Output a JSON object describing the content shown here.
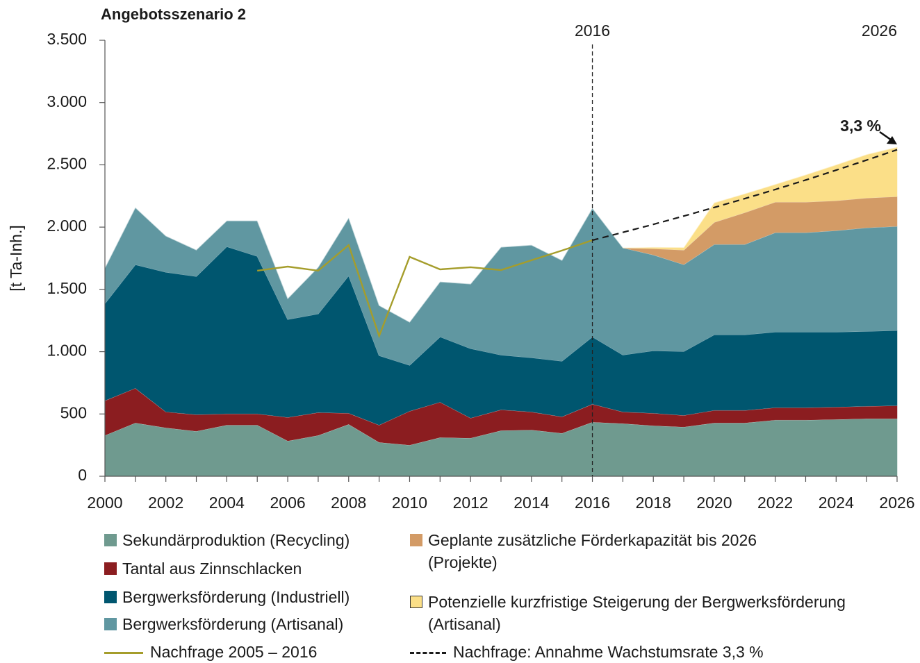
{
  "chart_data": {
    "type": "stacked-area",
    "title": "Angebotsszenario 2",
    "y_label": "[t Ta-Inh.]",
    "x": [
      2000,
      2001,
      2002,
      2003,
      2004,
      2005,
      2006,
      2007,
      2008,
      2009,
      2010,
      2011,
      2012,
      2013,
      2014,
      2015,
      2016,
      2017,
      2018,
      2019,
      2020,
      2021,
      2022,
      2023,
      2024,
      2025,
      2026
    ],
    "xlim": [
      2000,
      2026
    ],
    "xticks": [
      2000,
      2002,
      2004,
      2006,
      2008,
      2010,
      2012,
      2014,
      2016,
      2018,
      2020,
      2022,
      2024,
      2026
    ],
    "ylim": [
      0,
      3500
    ],
    "yticks": [
      0,
      500,
      {
        "value": 1000,
        "label": "1.000"
      },
      {
        "value": 1500,
        "label": "1.500"
      },
      {
        "value": 2000,
        "label": "2.000"
      },
      {
        "value": 2500,
        "label": "2.500"
      },
      {
        "value": 3000,
        "label": "3.000"
      },
      {
        "value": 3500,
        "label": "3.500"
      }
    ],
    "series": [
      {
        "name": "Sekundärproduktion (Recycling)",
        "kind": "area",
        "color": "#6f9a8f",
        "values": [
          329,
          429,
          390,
          362,
          412,
          412,
          284,
          329,
          418,
          273,
          251,
          312,
          307,
          368,
          373,
          346,
          435,
          424,
          407,
          396,
          429,
          429,
          452,
          452,
          457,
          463,
          463
        ]
      },
      {
        "name": "Tantal aus Zinnschlacken",
        "kind": "area",
        "color": "#8b1d20",
        "values": [
          279,
          279,
          128,
          134,
          90,
          90,
          190,
          184,
          89,
          139,
          273,
          284,
          161,
          167,
          145,
          133,
          145,
          94,
          100,
          94,
          101,
          101,
          100,
          100,
          100,
          100,
          105
        ]
      },
      {
        "name": "Bergwerksförderung (Industriell)",
        "kind": "area",
        "color": "#00566f",
        "values": [
          780,
          992,
          1121,
          1109,
          1343,
          1265,
          786,
          791,
          1104,
          558,
          368,
          524,
          558,
          440,
          435,
          446,
          540,
          457,
          502,
          513,
          607,
          607,
          607,
          607,
          602,
          602,
          603
        ]
      },
      {
        "name": "Bergwerksförderung (Artisanal)",
        "kind": "area",
        "color": "#6097a1",
        "values": [
          284,
          457,
          290,
          212,
          206,
          284,
          167,
          374,
          463,
          401,
          345,
          441,
          518,
          864,
          903,
          809,
          1032,
          859,
          769,
          697,
          725,
          725,
          798,
          798,
          814,
          831,
          836
        ]
      },
      {
        "name": "Geplante zusätzliche Förderkapazität bis 2026 (Projekte)",
        "kind": "area",
        "color": "#d39b66",
        "values": [
          null,
          null,
          null,
          null,
          null,
          null,
          null,
          null,
          null,
          null,
          null,
          null,
          null,
          null,
          null,
          null,
          null,
          0,
          50,
          117,
          178,
          256,
          245,
          245,
          240,
          239,
          239
        ]
      },
      {
        "name": "Potenzielle kurzfristige Steigerung der Bergwerksförderung (Artisanal)",
        "kind": "area",
        "color": "#fbdf88",
        "values": [
          null,
          null,
          null,
          null,
          null,
          null,
          null,
          null,
          null,
          null,
          null,
          null,
          null,
          null,
          null,
          null,
          null,
          0,
          10,
          20,
          156,
          150,
          141,
          218,
          287,
          348,
          396
        ]
      },
      {
        "name": "Nachfrage 2005 – 2016",
        "kind": "line",
        "color": "#a59d2b",
        "values": [
          null,
          null,
          null,
          null,
          null,
          1650,
          1683,
          1650,
          1856,
          1126,
          1761,
          1661,
          1678,
          1655,
          1734,
          1812,
          1895,
          null,
          null,
          null,
          null,
          null,
          null,
          null,
          null,
          null,
          null
        ]
      },
      {
        "name": "Nachfrage: Annahme Wachstumsrate 3,3 %",
        "kind": "line",
        "dash": true,
        "color": "#1a1a1a",
        "values": [
          null,
          null,
          null,
          null,
          null,
          null,
          null,
          null,
          null,
          null,
          null,
          null,
          null,
          null,
          null,
          null,
          1895,
          1958,
          2022,
          2089,
          2158,
          2229,
          2302,
          2378,
          2457,
          2538,
          2621
        ]
      }
    ],
    "markers": [
      {
        "x": 2016,
        "label": "2016",
        "line": true
      },
      {
        "x": 2026,
        "label": "2026"
      }
    ],
    "annotation": "3,3 %"
  }
}
